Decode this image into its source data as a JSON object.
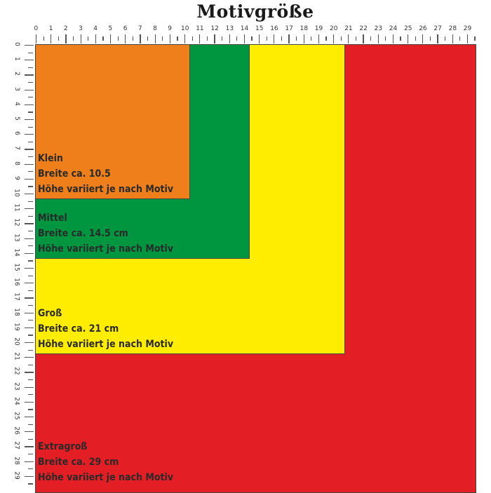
{
  "title": "Motivgröße",
  "ruler": {
    "max": 29,
    "unit_step": 0.5
  },
  "sizes": [
    {
      "name": "Extragroß",
      "width_text": "Breite ca. 29 cm",
      "height_text": "Höhe variiert je nach Motiv",
      "size_cm": 29.6,
      "color": "#e31e24"
    },
    {
      "name": "Groß",
      "width_text": "Breite ca. 21 cm",
      "height_text": "Höhe variiert je nach Motiv",
      "size_cm": 20.8,
      "color": "#ffed00"
    },
    {
      "name": "Mittel",
      "width_text": "Breite ca. 14.5 cm",
      "height_text": "Höhe variiert je nach Motiv",
      "size_cm": 14.4,
      "color": "#009640"
    },
    {
      "name": "Klein",
      "width_text": "Breite ca. 10.5",
      "height_text": "Höhe variiert je nach Motiv",
      "size_cm": 10.4,
      "color": "#ee7f1a"
    }
  ]
}
